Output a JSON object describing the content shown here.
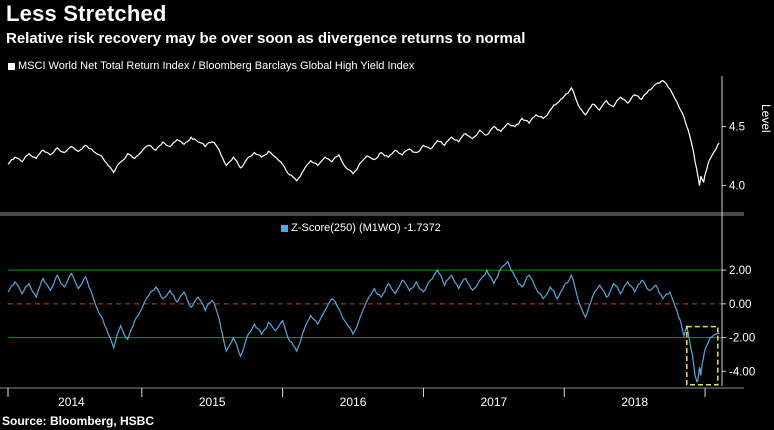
{
  "header": {
    "title": "Less Stretched",
    "subtitle": "Relative risk recovery may be over soon as divergence returns to normal"
  },
  "source": "Source: Bloomberg, HSBC",
  "colors": {
    "background": "#000000",
    "text": "#ffffff",
    "axis": "#8c8c8c",
    "axis_light": "#d0d0d0",
    "tick": "#e0e0e0",
    "separator": "#474747"
  },
  "xaxis": {
    "range": [
      2014.05,
      2019.12
    ],
    "labels": [
      "2014",
      "2015",
      "2016",
      "2017",
      "2018"
    ],
    "label_positions": [
      2014.5,
      2015.5,
      2016.5,
      2017.5,
      2018.5
    ],
    "tick_positions": [
      2015,
      2016,
      2017,
      2018,
      2019
    ]
  },
  "chart_data": [
    {
      "type": "line",
      "id": "ratio",
      "panel": "top",
      "legend": "MSCI World Net Total Return Index / Bloomberg Barclays Global High Yield Index",
      "ylabel": "Level",
      "color": "#ffffff",
      "ylim": [
        3.8,
        4.93
      ],
      "yticks": [
        {
          "v": 4.5,
          "label": "4.5"
        },
        {
          "v": 4.0,
          "label": "4.0"
        }
      ],
      "x": [
        2014.05,
        2014.1,
        2014.15,
        2014.2,
        2014.25,
        2014.3,
        2014.35,
        2014.4,
        2014.45,
        2014.5,
        2014.55,
        2014.6,
        2014.65,
        2014.7,
        2014.75,
        2014.8,
        2014.85,
        2014.9,
        2014.95,
        2015,
        2015.05,
        2015.1,
        2015.15,
        2015.2,
        2015.25,
        2015.3,
        2015.35,
        2015.4,
        2015.45,
        2015.5,
        2015.55,
        2015.6,
        2015.65,
        2015.7,
        2015.75,
        2015.8,
        2015.85,
        2015.9,
        2015.95,
        2016,
        2016.05,
        2016.1,
        2016.15,
        2016.2,
        2016.25,
        2016.3,
        2016.35,
        2016.4,
        2016.45,
        2016.5,
        2016.55,
        2016.6,
        2016.65,
        2016.7,
        2016.75,
        2016.8,
        2016.85,
        2016.9,
        2016.95,
        2017,
        2017.05,
        2017.1,
        2017.15,
        2017.2,
        2017.25,
        2017.3,
        2017.35,
        2017.4,
        2017.45,
        2017.5,
        2017.55,
        2017.6,
        2017.65,
        2017.7,
        2017.75,
        2017.8,
        2017.85,
        2017.9,
        2017.95,
        2018,
        2018.05,
        2018.1,
        2018.15,
        2018.2,
        2018.25,
        2018.3,
        2018.35,
        2018.4,
        2018.45,
        2018.5,
        2018.55,
        2018.6,
        2018.65,
        2018.7,
        2018.75,
        2018.8,
        2018.85,
        2018.88,
        2018.9,
        2018.92,
        2018.94,
        2018.96,
        2018.97,
        2018.99,
        2019.02,
        2019.06,
        2019.1
      ],
      "y": [
        4.18,
        4.24,
        4.2,
        4.27,
        4.23,
        4.3,
        4.26,
        4.32,
        4.28,
        4.33,
        4.29,
        4.34,
        4.3,
        4.26,
        4.19,
        4.11,
        4.2,
        4.27,
        4.23,
        4.29,
        4.34,
        4.3,
        4.37,
        4.33,
        4.39,
        4.35,
        4.41,
        4.37,
        4.33,
        4.37,
        4.3,
        4.17,
        4.24,
        4.15,
        4.23,
        4.28,
        4.24,
        4.29,
        4.24,
        4.18,
        4.09,
        4.04,
        4.13,
        4.21,
        4.17,
        4.24,
        4.2,
        4.26,
        4.15,
        4.1,
        4.19,
        4.25,
        4.22,
        4.28,
        4.24,
        4.3,
        4.26,
        4.31,
        4.28,
        4.34,
        4.31,
        4.38,
        4.34,
        4.41,
        4.37,
        4.44,
        4.4,
        4.47,
        4.43,
        4.5,
        4.46,
        4.53,
        4.5,
        4.57,
        4.53,
        4.6,
        4.57,
        4.64,
        4.7,
        4.76,
        4.83,
        4.68,
        4.6,
        4.69,
        4.64,
        4.72,
        4.67,
        4.75,
        4.7,
        4.77,
        4.73,
        4.81,
        4.86,
        4.89,
        4.82,
        4.71,
        4.58,
        4.47,
        4.38,
        4.27,
        4.14,
        4.0,
        4.08,
        4.03,
        4.18,
        4.28,
        4.36
      ]
    },
    {
      "type": "line",
      "id": "zscore",
      "panel": "bottom",
      "legend": "Z-Score(250) (M1WO) -1.7372",
      "last_value": -1.7372,
      "color": "#55a7e0",
      "ylim": [
        -4.87,
        3.25
      ],
      "yticks": [
        {
          "v": 2,
          "label": "2.00"
        },
        {
          "v": 0,
          "label": "0.00"
        },
        {
          "v": -2,
          "label": "-2.00"
        },
        {
          "v": -4,
          "label": "-4.00"
        }
      ],
      "reference_lines": [
        {
          "value": 2.0,
          "color": "#00a000",
          "style": "solid"
        },
        {
          "value": 0.0,
          "color": "#cc3b3b",
          "style": "dashed"
        },
        {
          "value": -2.0,
          "color": "#00a000",
          "style": "solid"
        }
      ],
      "highlight_box": {
        "x0": 2018.87,
        "x1": 2019.09,
        "y0": -4.8,
        "y1": -1.35,
        "color": "#e8e44f",
        "style": "dashed"
      },
      "x": [
        2014.05,
        2014.1,
        2014.15,
        2014.2,
        2014.25,
        2014.3,
        2014.35,
        2014.4,
        2014.45,
        2014.5,
        2014.55,
        2014.6,
        2014.65,
        2014.7,
        2014.75,
        2014.8,
        2014.85,
        2014.9,
        2014.95,
        2015,
        2015.05,
        2015.1,
        2015.15,
        2015.2,
        2015.25,
        2015.3,
        2015.35,
        2015.4,
        2015.45,
        2015.5,
        2015.55,
        2015.6,
        2015.65,
        2015.7,
        2015.75,
        2015.8,
        2015.85,
        2015.9,
        2015.95,
        2016,
        2016.05,
        2016.1,
        2016.15,
        2016.2,
        2016.25,
        2016.3,
        2016.35,
        2016.4,
        2016.45,
        2016.5,
        2016.55,
        2016.6,
        2016.65,
        2016.7,
        2016.75,
        2016.8,
        2016.85,
        2016.9,
        2016.95,
        2017,
        2017.05,
        2017.1,
        2017.15,
        2017.2,
        2017.25,
        2017.3,
        2017.35,
        2017.4,
        2017.45,
        2017.5,
        2017.55,
        2017.6,
        2017.65,
        2017.7,
        2017.75,
        2017.8,
        2017.85,
        2017.9,
        2017.95,
        2018,
        2018.05,
        2018.1,
        2018.15,
        2018.2,
        2018.25,
        2018.3,
        2018.35,
        2018.4,
        2018.45,
        2018.5,
        2018.55,
        2018.6,
        2018.65,
        2018.7,
        2018.75,
        2018.8,
        2018.83,
        2018.85,
        2018.87,
        2018.89,
        2018.91,
        2018.93,
        2018.945,
        2018.96,
        2018.97,
        2018.98,
        2019,
        2019.03,
        2019.06,
        2019.1
      ],
      "y": [
        0.7,
        1.3,
        0.6,
        1.2,
        0.4,
        1.5,
        0.8,
        1.7,
        1.0,
        1.8,
        0.9,
        1.6,
        0.5,
        -0.6,
        -1.5,
        -2.6,
        -1.3,
        -2.1,
        -1.0,
        -0.3,
        0.5,
        1.0,
        0.3,
        0.8,
        0.1,
        0.7,
        -0.2,
        0.4,
        -0.4,
        0.2,
        -0.9,
        -2.8,
        -2.0,
        -3.1,
        -1.9,
        -1.2,
        -1.8,
        -1.1,
        -1.6,
        -1.0,
        -2.2,
        -2.8,
        -1.6,
        -0.7,
        -1.2,
        -0.4,
        0.3,
        -0.3,
        -1.1,
        -1.8,
        -0.8,
        0.2,
        0.9,
        0.4,
        1.2,
        0.6,
        1.4,
        0.8,
        1.3,
        0.7,
        1.4,
        2.0,
        1.1,
        1.7,
        0.9,
        1.5,
        0.8,
        1.4,
        2.0,
        1.2,
        2.1,
        2.5,
        1.6,
        1.0,
        1.7,
        0.9,
        0.3,
        1.0,
        0.3,
        1.1,
        1.7,
        0.2,
        -0.8,
        0.4,
        1.1,
        0.4,
        1.2,
        0.6,
        1.3,
        0.7,
        1.4,
        0.8,
        1.1,
        0.3,
        0.7,
        -0.4,
        -1.2,
        -1.9,
        -1.3,
        -2.2,
        -3.0,
        -4.3,
        -4.62,
        -3.8,
        -4.25,
        -3.5,
        -2.7,
        -2.1,
        -1.9,
        -1.74
      ]
    }
  ]
}
